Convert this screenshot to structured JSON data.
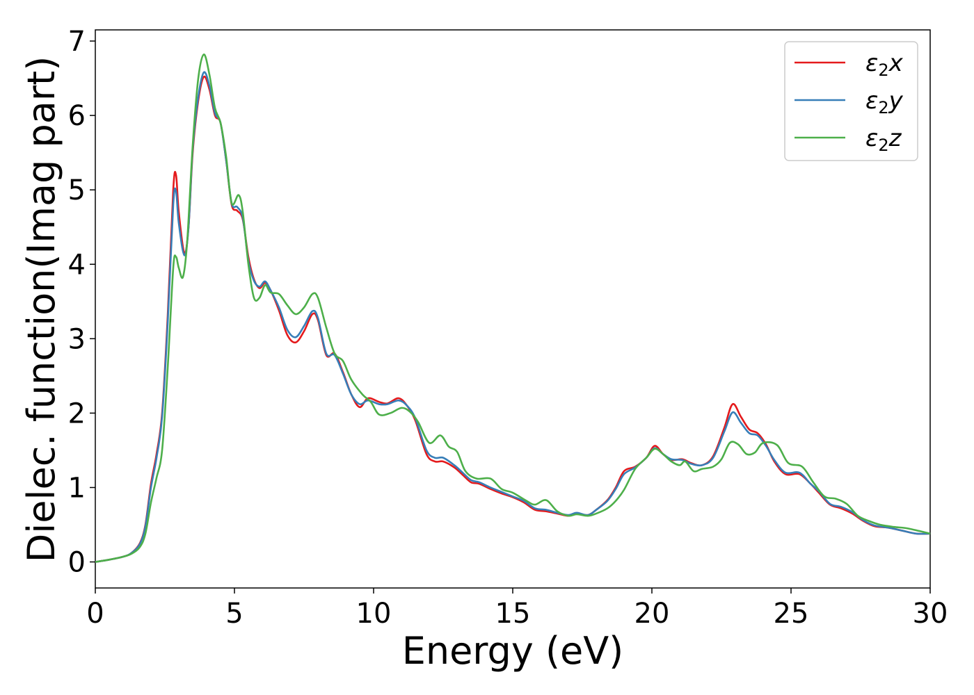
{
  "chart_data": {
    "type": "line",
    "title": "",
    "xlabel": "Energy (eV)",
    "ylabel": "Dielec. function(Imag part)",
    "xlim": [
      0,
      30
    ],
    "ylim": [
      -0.35,
      7.15
    ],
    "xticks": [
      0,
      5,
      10,
      15,
      20,
      25,
      30
    ],
    "yticks": [
      0,
      1,
      2,
      3,
      4,
      5,
      6,
      7
    ],
    "xtick_labels": [
      "0",
      "5",
      "10",
      "15",
      "20",
      "25",
      "30"
    ],
    "ytick_labels": [
      "0",
      "1",
      "2",
      "3",
      "4",
      "5",
      "6",
      "7"
    ],
    "grid": false,
    "legend_position": "top-right",
    "series": [
      {
        "name": "ε2x",
        "legend_base": "ε",
        "legend_sub": "2",
        "legend_var": "x",
        "color": "#e41a1c",
        "points": [
          [
            0,
            0
          ],
          [
            0.5,
            0.03
          ],
          [
            1,
            0.07
          ],
          [
            1.3,
            0.12
          ],
          [
            1.6,
            0.25
          ],
          [
            1.8,
            0.5
          ],
          [
            2.0,
            1.05
          ],
          [
            2.2,
            1.45
          ],
          [
            2.4,
            2.0
          ],
          [
            2.6,
            3.3
          ],
          [
            2.8,
            5.0
          ],
          [
            2.9,
            5.2
          ],
          [
            3.0,
            4.7
          ],
          [
            3.2,
            4.15
          ],
          [
            3.35,
            4.5
          ],
          [
            3.5,
            5.5
          ],
          [
            3.7,
            6.2
          ],
          [
            3.9,
            6.52
          ],
          [
            4.1,
            6.35
          ],
          [
            4.3,
            6.0
          ],
          [
            4.5,
            5.9
          ],
          [
            4.7,
            5.4
          ],
          [
            4.9,
            4.8
          ],
          [
            5.1,
            4.72
          ],
          [
            5.3,
            4.6
          ],
          [
            5.5,
            4.1
          ],
          [
            5.7,
            3.8
          ],
          [
            5.9,
            3.68
          ],
          [
            6.1,
            3.75
          ],
          [
            6.3,
            3.65
          ],
          [
            6.6,
            3.38
          ],
          [
            6.9,
            3.05
          ],
          [
            7.2,
            2.95
          ],
          [
            7.5,
            3.1
          ],
          [
            7.8,
            3.33
          ],
          [
            8.0,
            3.25
          ],
          [
            8.3,
            2.78
          ],
          [
            8.6,
            2.8
          ],
          [
            8.9,
            2.55
          ],
          [
            9.2,
            2.25
          ],
          [
            9.5,
            2.08
          ],
          [
            9.8,
            2.2
          ],
          [
            10.2,
            2.15
          ],
          [
            10.5,
            2.13
          ],
          [
            10.9,
            2.2
          ],
          [
            11.2,
            2.1
          ],
          [
            11.5,
            1.9
          ],
          [
            11.9,
            1.45
          ],
          [
            12.2,
            1.35
          ],
          [
            12.5,
            1.35
          ],
          [
            12.9,
            1.27
          ],
          [
            13.2,
            1.17
          ],
          [
            13.5,
            1.07
          ],
          [
            13.8,
            1.05
          ],
          [
            14.2,
            0.98
          ],
          [
            14.6,
            0.92
          ],
          [
            15.0,
            0.87
          ],
          [
            15.4,
            0.8
          ],
          [
            15.8,
            0.7
          ],
          [
            16.2,
            0.68
          ],
          [
            16.6,
            0.65
          ],
          [
            17.0,
            0.62
          ],
          [
            17.3,
            0.65
          ],
          [
            17.7,
            0.63
          ],
          [
            18.0,
            0.7
          ],
          [
            18.4,
            0.83
          ],
          [
            18.7,
            1.0
          ],
          [
            19.0,
            1.22
          ],
          [
            19.4,
            1.28
          ],
          [
            19.8,
            1.4
          ],
          [
            20.1,
            1.56
          ],
          [
            20.4,
            1.45
          ],
          [
            20.7,
            1.37
          ],
          [
            21.1,
            1.38
          ],
          [
            21.4,
            1.33
          ],
          [
            21.8,
            1.3
          ],
          [
            22.2,
            1.42
          ],
          [
            22.6,
            1.8
          ],
          [
            22.9,
            2.12
          ],
          [
            23.2,
            1.95
          ],
          [
            23.5,
            1.78
          ],
          [
            23.8,
            1.73
          ],
          [
            24.1,
            1.58
          ],
          [
            24.4,
            1.35
          ],
          [
            24.8,
            1.18
          ],
          [
            25.3,
            1.18
          ],
          [
            25.7,
            1.05
          ],
          [
            26.0,
            0.93
          ],
          [
            26.4,
            0.77
          ],
          [
            26.8,
            0.72
          ],
          [
            27.2,
            0.65
          ],
          [
            27.6,
            0.55
          ],
          [
            28.0,
            0.48
          ],
          [
            28.5,
            0.46
          ],
          [
            29.0,
            0.42
          ],
          [
            29.5,
            0.38
          ],
          [
            30,
            0.38
          ]
        ]
      },
      {
        "name": "ε2y",
        "legend_base": "ε",
        "legend_sub": "2",
        "legend_var": "y",
        "color": "#377eb8",
        "points": [
          [
            0,
            0
          ],
          [
            0.5,
            0.03
          ],
          [
            1,
            0.07
          ],
          [
            1.3,
            0.12
          ],
          [
            1.6,
            0.24
          ],
          [
            1.8,
            0.48
          ],
          [
            2.0,
            1.0
          ],
          [
            2.2,
            1.4
          ],
          [
            2.4,
            1.95
          ],
          [
            2.6,
            3.2
          ],
          [
            2.8,
            4.8
          ],
          [
            2.9,
            4.98
          ],
          [
            3.0,
            4.55
          ],
          [
            3.2,
            4.12
          ],
          [
            3.35,
            4.5
          ],
          [
            3.5,
            5.55
          ],
          [
            3.7,
            6.25
          ],
          [
            3.9,
            6.58
          ],
          [
            4.1,
            6.4
          ],
          [
            4.3,
            6.03
          ],
          [
            4.5,
            5.9
          ],
          [
            4.7,
            5.4
          ],
          [
            4.9,
            4.82
          ],
          [
            5.1,
            4.77
          ],
          [
            5.3,
            4.62
          ],
          [
            5.5,
            4.05
          ],
          [
            5.7,
            3.78
          ],
          [
            5.9,
            3.7
          ],
          [
            6.1,
            3.77
          ],
          [
            6.3,
            3.65
          ],
          [
            6.6,
            3.42
          ],
          [
            6.9,
            3.12
          ],
          [
            7.2,
            3.02
          ],
          [
            7.5,
            3.17
          ],
          [
            7.8,
            3.37
          ],
          [
            8.0,
            3.28
          ],
          [
            8.3,
            2.8
          ],
          [
            8.6,
            2.78
          ],
          [
            8.9,
            2.53
          ],
          [
            9.2,
            2.25
          ],
          [
            9.5,
            2.12
          ],
          [
            9.8,
            2.17
          ],
          [
            10.2,
            2.12
          ],
          [
            10.5,
            2.12
          ],
          [
            10.9,
            2.17
          ],
          [
            11.2,
            2.1
          ],
          [
            11.5,
            1.93
          ],
          [
            11.9,
            1.5
          ],
          [
            12.2,
            1.4
          ],
          [
            12.5,
            1.4
          ],
          [
            12.9,
            1.3
          ],
          [
            13.2,
            1.2
          ],
          [
            13.5,
            1.1
          ],
          [
            13.8,
            1.07
          ],
          [
            14.2,
            1.0
          ],
          [
            14.6,
            0.94
          ],
          [
            15.0,
            0.88
          ],
          [
            15.4,
            0.82
          ],
          [
            15.8,
            0.72
          ],
          [
            16.2,
            0.7
          ],
          [
            16.6,
            0.66
          ],
          [
            17.0,
            0.63
          ],
          [
            17.3,
            0.66
          ],
          [
            17.7,
            0.63
          ],
          [
            18.0,
            0.7
          ],
          [
            18.4,
            0.82
          ],
          [
            18.7,
            0.98
          ],
          [
            19.0,
            1.18
          ],
          [
            19.4,
            1.27
          ],
          [
            19.8,
            1.4
          ],
          [
            20.1,
            1.53
          ],
          [
            20.4,
            1.45
          ],
          [
            20.7,
            1.38
          ],
          [
            21.1,
            1.37
          ],
          [
            21.4,
            1.32
          ],
          [
            21.8,
            1.3
          ],
          [
            22.2,
            1.4
          ],
          [
            22.6,
            1.75
          ],
          [
            22.9,
            2.01
          ],
          [
            23.2,
            1.87
          ],
          [
            23.5,
            1.73
          ],
          [
            23.8,
            1.7
          ],
          [
            24.1,
            1.56
          ],
          [
            24.4,
            1.37
          ],
          [
            24.8,
            1.2
          ],
          [
            25.3,
            1.2
          ],
          [
            25.7,
            1.05
          ],
          [
            26.0,
            0.95
          ],
          [
            26.4,
            0.78
          ],
          [
            26.8,
            0.74
          ],
          [
            27.2,
            0.67
          ],
          [
            27.6,
            0.56
          ],
          [
            28.0,
            0.49
          ],
          [
            28.5,
            0.46
          ],
          [
            29.0,
            0.42
          ],
          [
            29.5,
            0.38
          ],
          [
            30,
            0.38
          ]
        ]
      },
      {
        "name": "ε2z",
        "legend_base": "ε",
        "legend_sub": "2",
        "legend_var": "z",
        "color": "#4daf4a",
        "points": [
          [
            0,
            0
          ],
          [
            0.5,
            0.03
          ],
          [
            1,
            0.07
          ],
          [
            1.3,
            0.11
          ],
          [
            1.6,
            0.2
          ],
          [
            1.8,
            0.38
          ],
          [
            2.0,
            0.8
          ],
          [
            2.2,
            1.13
          ],
          [
            2.4,
            1.5
          ],
          [
            2.6,
            2.6
          ],
          [
            2.8,
            3.95
          ],
          [
            2.9,
            4.1
          ],
          [
            3.0,
            3.95
          ],
          [
            3.15,
            3.83
          ],
          [
            3.3,
            4.3
          ],
          [
            3.5,
            5.6
          ],
          [
            3.7,
            6.5
          ],
          [
            3.9,
            6.82
          ],
          [
            4.1,
            6.55
          ],
          [
            4.3,
            6.1
          ],
          [
            4.5,
            5.9
          ],
          [
            4.7,
            5.45
          ],
          [
            4.9,
            4.82
          ],
          [
            5.15,
            4.93
          ],
          [
            5.3,
            4.7
          ],
          [
            5.5,
            4.0
          ],
          [
            5.7,
            3.55
          ],
          [
            5.9,
            3.55
          ],
          [
            6.1,
            3.72
          ],
          [
            6.3,
            3.62
          ],
          [
            6.6,
            3.6
          ],
          [
            6.9,
            3.45
          ],
          [
            7.2,
            3.33
          ],
          [
            7.5,
            3.42
          ],
          [
            7.8,
            3.6
          ],
          [
            8.0,
            3.55
          ],
          [
            8.3,
            3.15
          ],
          [
            8.6,
            2.8
          ],
          [
            8.9,
            2.7
          ],
          [
            9.2,
            2.45
          ],
          [
            9.6,
            2.25
          ],
          [
            9.9,
            2.15
          ],
          [
            10.2,
            1.98
          ],
          [
            10.6,
            2.0
          ],
          [
            11.0,
            2.07
          ],
          [
            11.3,
            2.02
          ],
          [
            11.6,
            1.88
          ],
          [
            12.0,
            1.6
          ],
          [
            12.4,
            1.7
          ],
          [
            12.7,
            1.55
          ],
          [
            13.0,
            1.48
          ],
          [
            13.3,
            1.22
          ],
          [
            13.7,
            1.12
          ],
          [
            14.2,
            1.12
          ],
          [
            14.6,
            0.98
          ],
          [
            15.0,
            0.93
          ],
          [
            15.5,
            0.82
          ],
          [
            15.8,
            0.77
          ],
          [
            16.2,
            0.83
          ],
          [
            16.6,
            0.68
          ],
          [
            17.0,
            0.62
          ],
          [
            17.3,
            0.64
          ],
          [
            17.7,
            0.62
          ],
          [
            18.0,
            0.65
          ],
          [
            18.4,
            0.72
          ],
          [
            18.7,
            0.82
          ],
          [
            19.0,
            0.97
          ],
          [
            19.4,
            1.25
          ],
          [
            19.8,
            1.4
          ],
          [
            20.1,
            1.52
          ],
          [
            20.4,
            1.45
          ],
          [
            20.7,
            1.35
          ],
          [
            21.0,
            1.3
          ],
          [
            21.2,
            1.35
          ],
          [
            21.5,
            1.22
          ],
          [
            21.8,
            1.25
          ],
          [
            22.2,
            1.28
          ],
          [
            22.5,
            1.38
          ],
          [
            22.8,
            1.6
          ],
          [
            23.1,
            1.58
          ],
          [
            23.4,
            1.45
          ],
          [
            23.7,
            1.47
          ],
          [
            24.0,
            1.6
          ],
          [
            24.5,
            1.57
          ],
          [
            24.9,
            1.33
          ],
          [
            25.4,
            1.28
          ],
          [
            25.8,
            1.07
          ],
          [
            26.2,
            0.88
          ],
          [
            26.6,
            0.85
          ],
          [
            27.0,
            0.78
          ],
          [
            27.4,
            0.62
          ],
          [
            27.8,
            0.55
          ],
          [
            28.2,
            0.5
          ],
          [
            28.7,
            0.47
          ],
          [
            29.2,
            0.45
          ],
          [
            30,
            0.38
          ]
        ]
      }
    ]
  }
}
